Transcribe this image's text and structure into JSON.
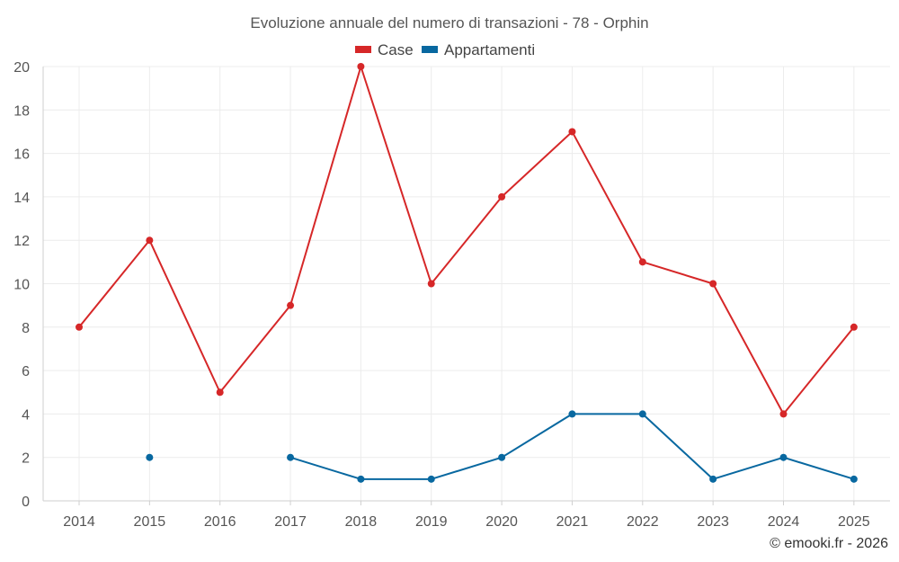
{
  "chart_data": {
    "type": "line",
    "title": "Evoluzione annuale del numero di transazioni - 78 - Orphin",
    "categories": [
      "2014",
      "2015",
      "2016",
      "2017",
      "2018",
      "2019",
      "2020",
      "2021",
      "2022",
      "2023",
      "2024",
      "2025"
    ],
    "series": [
      {
        "name": "Case",
        "color": "#d62728",
        "values": [
          8,
          12,
          5,
          9,
          20,
          10,
          14,
          17,
          11,
          10,
          4,
          8
        ]
      },
      {
        "name": "Appartamenti",
        "color": "#0868a0",
        "values": [
          null,
          2,
          null,
          2,
          1,
          1,
          2,
          4,
          4,
          1,
          2,
          1
        ]
      }
    ],
    "ylim": [
      0,
      20
    ],
    "yticks": [
      0,
      2,
      4,
      6,
      8,
      10,
      12,
      14,
      16,
      18,
      20
    ],
    "xlabel": "",
    "ylabel": "",
    "grid": true,
    "legend_position": "top-center"
  },
  "credit": "© emooki.fr - 2026"
}
